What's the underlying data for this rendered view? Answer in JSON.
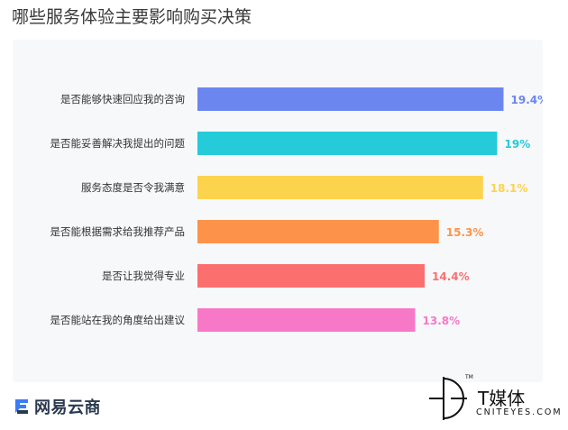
{
  "chart_data": {
    "type": "bar",
    "orientation": "horizontal",
    "title": "哪些服务体验主要影响购买决策",
    "categories": [
      "是否能够快速回应我的咨询",
      "是否能妥善解决我提出的问题",
      "服务态度是否令我满意",
      "是否能根据需求给我推荐产品",
      "是否让我觉得专业",
      "是否能站在我的角度给出建议"
    ],
    "values": [
      19.4,
      19,
      18.1,
      15.3,
      14.4,
      13.8
    ],
    "value_labels": [
      "19.4%",
      "19%",
      "18.1%",
      "15.3%",
      "14.4%",
      "13.8%"
    ],
    "colors": [
      "#6c86f0",
      "#25cbd8",
      "#fcd34d",
      "#fd934a",
      "#fc6f6f",
      "#f878c8"
    ],
    "xlim": [
      0,
      20
    ],
    "grid": false,
    "legend": "none"
  },
  "brands": {
    "left_name": "网易云商",
    "right_name": "T媒体",
    "right_sub": "CNITEYES.COM",
    "right_tm": "TM"
  }
}
